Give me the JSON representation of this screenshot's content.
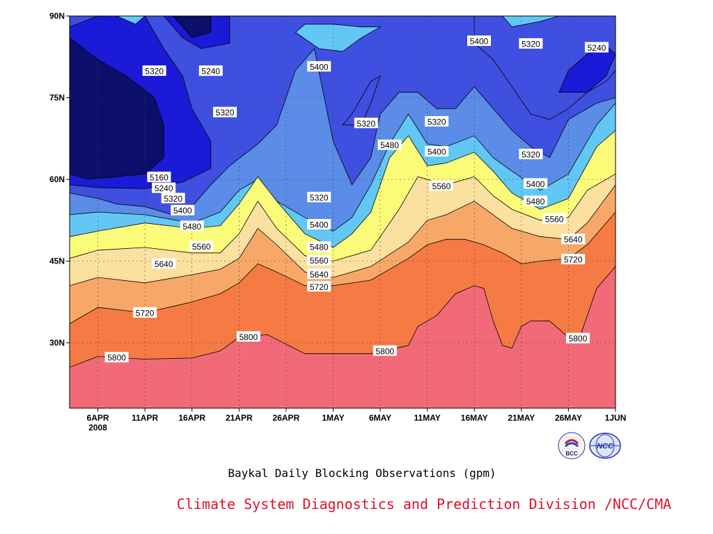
{
  "colors": {
    "bands": [
      "#0b0f6b",
      "#1a1ad8",
      "#3f4fe0",
      "#5a8ce8",
      "#62c7f5",
      "#fbfb7a",
      "#fbe0a0",
      "#f7a868",
      "#f57a44",
      "#f26a78"
    ],
    "contour": "#000000",
    "credit": "#e0102a"
  },
  "figure": {
    "title": "Baykal Daily Blocking Observations (gpm)",
    "credit": "Climate System Diagnostics and Prediction Division /NCC/CMA",
    "logos": [
      {
        "name": "bcc-logo",
        "text": "BCC"
      },
      {
        "name": "ncc-logo",
        "text": "NCC"
      }
    ]
  },
  "chart_data": {
    "type": "heatmap",
    "subtype": "filled-contour",
    "title": "Baykal Daily Blocking Observations (gpm)",
    "xlabel": "",
    "ylabel": "",
    "x_ticks": [
      {
        "day": 3,
        "label": "6APR",
        "label2": "2008"
      },
      {
        "day": 8,
        "label": "11APR"
      },
      {
        "day": 13,
        "label": "16APR"
      },
      {
        "day": 18,
        "label": "21APR"
      },
      {
        "day": 23,
        "label": "26APR"
      },
      {
        "day": 28,
        "label": "1MAY"
      },
      {
        "day": 33,
        "label": "6MAY"
      },
      {
        "day": 38,
        "label": "11MAY"
      },
      {
        "day": 43,
        "label": "16MAY"
      },
      {
        "day": 48,
        "label": "21MAY"
      },
      {
        "day": 53,
        "label": "26MAY"
      },
      {
        "day": 58,
        "label": "1JUN"
      }
    ],
    "xlim": [
      "2008-04-04",
      "2008-06-01"
    ],
    "ylim": [
      18,
      90
    ],
    "y_ticks": [
      {
        "value": 30,
        "label": "30N"
      },
      {
        "value": 45,
        "label": "45N"
      },
      {
        "value": 60,
        "label": "60N"
      },
      {
        "value": 75,
        "label": "75N"
      },
      {
        "value": 90,
        "label": "90N"
      }
    ],
    "levels": [
      5160,
      5240,
      5320,
      5400,
      5480,
      5560,
      5640,
      5720,
      5800
    ],
    "grid": true,
    "contours": [
      {
        "level": 5800,
        "x": [
          0,
          3,
          8,
          13,
          16,
          18,
          21,
          25,
          28,
          32,
          36,
          37,
          39,
          41,
          43,
          44,
          45,
          46,
          47,
          48,
          49,
          51,
          53,
          54,
          56,
          58
        ],
        "y": [
          25.5,
          27.5,
          27,
          27.2,
          28.5,
          31,
          31.5,
          28,
          28,
          28,
          29.5,
          33,
          35,
          39,
          40.5,
          40,
          34,
          29.5,
          29,
          33,
          34,
          34,
          31,
          30,
          40,
          44
        ]
      },
      {
        "level": 5720,
        "x": [
          0,
          3,
          8,
          13,
          16,
          18,
          20,
          22,
          25,
          28,
          32,
          36,
          38,
          40,
          42,
          44,
          46,
          48,
          50,
          53,
          55,
          58
        ],
        "y": [
          33.5,
          36.5,
          35.5,
          37.5,
          39,
          41,
          44.5,
          43,
          40.5,
          40.5,
          41.5,
          45.5,
          48,
          49,
          49,
          48,
          46.5,
          44.5,
          45,
          45.5,
          48,
          54
        ]
      },
      {
        "level": 5640,
        "x": [
          0,
          3,
          8,
          13,
          16,
          18,
          20,
          22,
          25,
          28,
          32,
          36,
          38,
          40,
          43,
          45,
          47,
          50,
          53,
          55,
          58
        ],
        "y": [
          40.5,
          42,
          41,
          42.5,
          43.5,
          45.5,
          51,
          48,
          43,
          42,
          44,
          48.5,
          52.5,
          53.5,
          56,
          53.5,
          51,
          49.5,
          49,
          52,
          59
        ]
      },
      {
        "level": 5560,
        "x": [
          0,
          3,
          8,
          13,
          16,
          18,
          20,
          22,
          25,
          28,
          32,
          35,
          37,
          40,
          43,
          45,
          47,
          50,
          53,
          55,
          58
        ],
        "y": [
          45.5,
          47,
          47.5,
          46.5,
          46.5,
          50,
          56,
          51,
          46,
          45,
          47,
          54.5,
          60.5,
          59,
          60.5,
          57,
          54.5,
          52.5,
          53,
          58,
          61
        ]
      },
      {
        "level": 5480,
        "x": [
          0,
          3,
          8,
          13,
          16,
          18,
          20,
          22,
          25,
          28,
          30,
          32,
          34,
          36,
          38,
          40,
          43,
          45,
          47,
          50,
          53,
          56,
          58
        ],
        "y": [
          49.5,
          50.5,
          52,
          51,
          51.5,
          55.5,
          60.5,
          56,
          50,
          47.5,
          50,
          54,
          64,
          68,
          62.5,
          63,
          65,
          61.5,
          57.5,
          54.5,
          56.5,
          66,
          69
        ]
      },
      {
        "level": 5400,
        "x": [
          0,
          3,
          8,
          13,
          16,
          18,
          20,
          22,
          25,
          28,
          30,
          32,
          34,
          36,
          38,
          40,
          43,
          45,
          47,
          50,
          53,
          56,
          58
        ],
        "y": [
          53.5,
          54,
          53.5,
          52,
          54,
          58,
          60,
          56,
          53,
          50.5,
          53,
          59,
          66.5,
          72,
          66.5,
          66,
          68,
          64,
          61.5,
          58,
          61,
          70,
          74
        ]
      },
      {
        "level": 5320,
        "x": [
          0,
          3,
          5,
          8,
          11,
          13,
          15,
          17,
          20,
          22,
          24,
          26,
          28,
          30,
          32,
          33,
          35,
          37,
          39,
          41,
          43,
          45,
          47,
          49,
          51,
          53,
          56,
          58
        ],
        "y": [
          57.5,
          56.5,
          55.5,
          55,
          53.5,
          55,
          59,
          62.5,
          66.5,
          70,
          80,
          84,
          67,
          59,
          64,
          72,
          76,
          76,
          73,
          73,
          77,
          73,
          69,
          66,
          64,
          71,
          74,
          75
        ]
      }
    ],
    "labels": [
      {
        "text": "5800",
        "x": 5,
        "y": 27.3
      },
      {
        "text": "5800",
        "x": 19,
        "y": 31.1
      },
      {
        "text": "5800",
        "x": 33.5,
        "y": 28.5
      },
      {
        "text": "5800",
        "x": 54,
        "y": 30.8
      },
      {
        "text": "5720",
        "x": 8,
        "y": 35.5
      },
      {
        "text": "5720",
        "x": 26.5,
        "y": 40.3
      },
      {
        "text": "5720",
        "x": 53.5,
        "y": 45.3
      },
      {
        "text": "5640",
        "x": 10,
        "y": 44.5
      },
      {
        "text": "5640",
        "x": 26.5,
        "y": 42.6
      },
      {
        "text": "5640",
        "x": 53.5,
        "y": 49
      },
      {
        "text": "5560",
        "x": 14,
        "y": 47.7
      },
      {
        "text": "5560",
        "x": 26.5,
        "y": 45.1
      },
      {
        "text": "5560",
        "x": 39.5,
        "y": 58.8
      },
      {
        "text": "5560",
        "x": 51.5,
        "y": 52.7
      },
      {
        "text": "5480",
        "x": 13,
        "y": 51.4
      },
      {
        "text": "5480",
        "x": 26.5,
        "y": 47.6
      },
      {
        "text": "5480",
        "x": 34,
        "y": 66.3
      },
      {
        "text": "5480",
        "x": 49.5,
        "y": 56
      },
      {
        "text": "5400",
        "x": 12,
        "y": 54.3
      },
      {
        "text": "5400",
        "x": 26.5,
        "y": 51.7
      },
      {
        "text": "5400",
        "x": 26.5,
        "y": 80.7
      },
      {
        "text": "5400",
        "x": 39,
        "y": 65.1
      },
      {
        "text": "5400",
        "x": 43.5,
        "y": 85.4
      },
      {
        "text": "5400",
        "x": 49.5,
        "y": 59.2
      },
      {
        "text": "5320",
        "x": 11,
        "y": 56.5
      },
      {
        "text": "5320",
        "x": 9,
        "y": 79.9
      },
      {
        "text": "5320",
        "x": 16.5,
        "y": 72.3
      },
      {
        "text": "5320",
        "x": 26.5,
        "y": 56.7
      },
      {
        "text": "5320",
        "x": 31.5,
        "y": 70.3
      },
      {
        "text": "5320",
        "x": 39,
        "y": 70.6
      },
      {
        "text": "5320",
        "x": 49,
        "y": 64.6
      },
      {
        "text": "5320",
        "x": 49,
        "y": 84.9
      },
      {
        "text": "5240",
        "x": 15,
        "y": 79.9
      },
      {
        "text": "5240",
        "x": 10,
        "y": 58.4
      },
      {
        "text": "5240",
        "x": 56,
        "y": 84.2
      },
      {
        "text": "5160",
        "x": 9.5,
        "y": 60.4
      }
    ]
  }
}
